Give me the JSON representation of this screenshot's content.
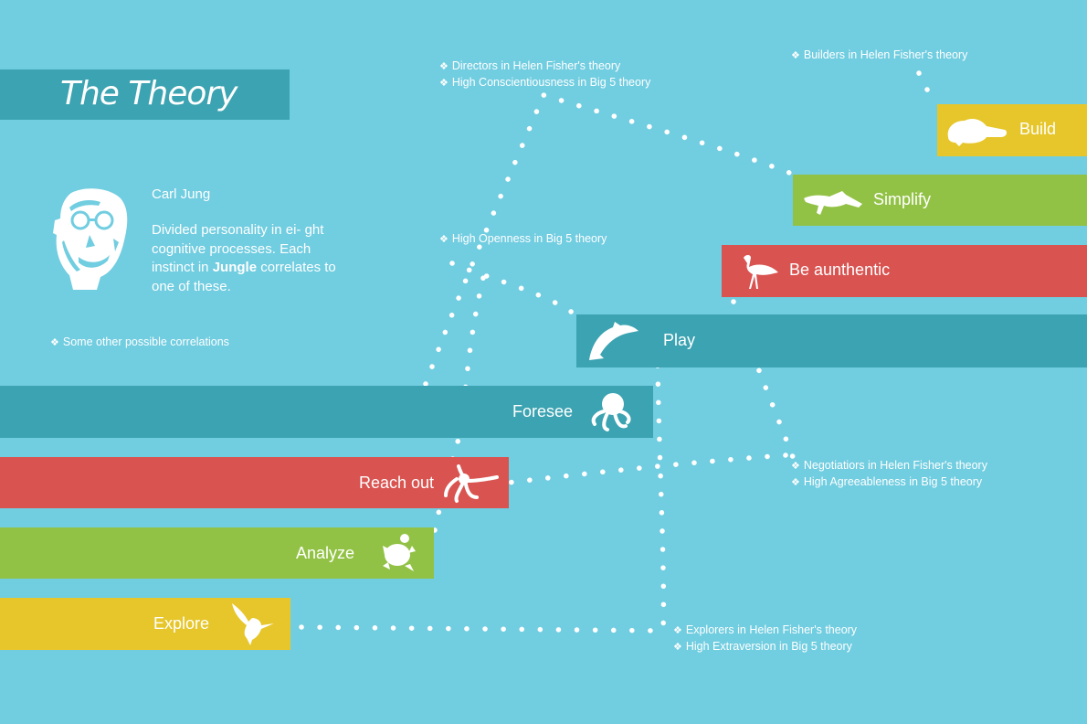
{
  "title": "The Theory",
  "jung": {
    "name": "Carl Jung",
    "desc_before": "Divided personality in ei- ght cognitive processes. Each instinct in ",
    "brand": "Jungle",
    "desc_after": " correlates to one  of these."
  },
  "bullet": "❖",
  "notes": {
    "other": "Some other possible correlations",
    "directors": "Directors in Helen Fisher's theory",
    "conscientiousness": "High Conscientiousness  in Big 5 theory",
    "builders": "Builders in Helen Fisher's theory",
    "openness": "High Openness in Big 5 theory",
    "negotiators": "Negotiatiors in Helen Fisher's theory",
    "agreeableness": "High Agreeableness  in Big 5 theory",
    "explorers": "Explorers in Helen Fisher's theory",
    "extraversion": "High Extraversion in Big 5 theory"
  },
  "bars": {
    "build": {
      "label": "Build",
      "color": "#e6c62a",
      "icon": "beaver-icon"
    },
    "simplify": {
      "label": "Simplify",
      "color": "#92c245",
      "icon": "crocodile-icon"
    },
    "authentic": {
      "label": "Be aunthentic",
      "color": "#d95350",
      "icon": "flamingo-icon"
    },
    "play": {
      "label": "Play",
      "color": "#3ba3b1",
      "icon": "dolphin-icon"
    },
    "foresee": {
      "label": "Foresee",
      "color": "#3ba3b1",
      "icon": "octopus-icon"
    },
    "reachout": {
      "label": "Reach out",
      "color": "#d95350",
      "icon": "monkey-icon"
    },
    "analyze": {
      "label": "Analyze",
      "color": "#92c245",
      "icon": "turtle-icon"
    },
    "explore": {
      "label": "Explore",
      "color": "#e6c62a",
      "icon": "hummingbird-icon"
    }
  },
  "colors": {
    "background": "#71cde0",
    "teal": "#3ba3b1",
    "red": "#d95350",
    "green": "#92c245",
    "yellow": "#e6c62a"
  }
}
